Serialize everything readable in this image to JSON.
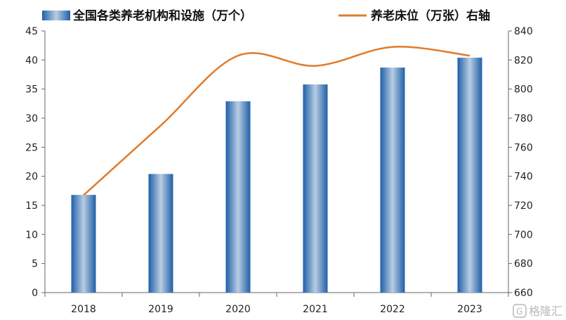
{
  "chart_data": {
    "type": "bar+line",
    "categories": [
      "2018",
      "2019",
      "2020",
      "2021",
      "2022",
      "2023"
    ],
    "series": [
      {
        "name": "全国各类养老机构和设施（万个）",
        "type": "bar",
        "axis": "left",
        "color": "#2e6fb5",
        "values": [
          16.8,
          20.4,
          32.9,
          35.8,
          38.7,
          40.4
        ]
      },
      {
        "name": "养老床位（万张）右轴",
        "type": "line",
        "axis": "right",
        "color": "#e07b2a",
        "values": [
          727,
          775,
          823,
          816,
          829,
          823
        ]
      }
    ],
    "y_left": {
      "min": 0,
      "max": 45,
      "step": 5,
      "ticks": [
        "0",
        "5",
        "10",
        "15",
        "20",
        "25",
        "30",
        "35",
        "40",
        "45"
      ]
    },
    "y_right": {
      "min": 660,
      "max": 840,
      "step": 20,
      "ticks": [
        "660",
        "680",
        "700",
        "720",
        "740",
        "760",
        "780",
        "800",
        "820",
        "840"
      ]
    },
    "grid": false,
    "legend_position": "top"
  },
  "watermark": {
    "text": "格隆汇",
    "icon": "g-logo-icon"
  }
}
